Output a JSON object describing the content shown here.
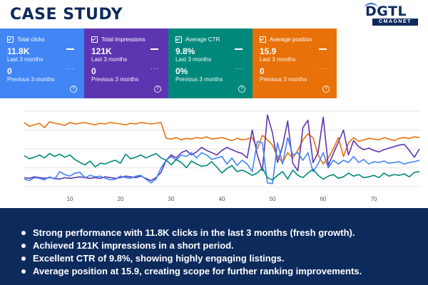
{
  "page": {
    "title": "CASE STUDY"
  },
  "logo": {
    "main": "DGTL",
    "sub": "CMAGNET"
  },
  "cards": [
    {
      "label": "Total clicks",
      "value": "11.8K",
      "period": "Last 3 months",
      "prev_value": "0",
      "prev_period": "Previous 3 months",
      "color": "#4285f4"
    },
    {
      "label": "Total impressions",
      "value": "121K",
      "period": "Last 3 months",
      "prev_value": "0",
      "prev_period": "Previous 3 months",
      "color": "#5e35b1"
    },
    {
      "label": "Average CTR",
      "value": "9.8%",
      "period": "Last 3 months",
      "prev_value": "0%",
      "prev_period": "Previous 3 months",
      "color": "#00897b"
    },
    {
      "label": "Average position",
      "value": "15.9",
      "period": "Last 3 months",
      "prev_value": "0",
      "prev_period": "Previous 3 months",
      "color": "#e8710a"
    }
  ],
  "card_icons": {
    "help": "?"
  },
  "chart_data": {
    "type": "line",
    "xlim": [
      1,
      79
    ],
    "ylim": [
      0,
      10
    ],
    "grid": true,
    "x_ticks": [
      "10",
      "20",
      "30",
      "40",
      "50",
      "60",
      "70"
    ],
    "series": [
      {
        "name": "Average position",
        "color": "#e8710a",
        "values": [
          8.5,
          8,
          8.2,
          8.4,
          7.8,
          8.6,
          8.4,
          8.3,
          8.1,
          8.5,
          8.3,
          8.4,
          8.5,
          8.3,
          8.2,
          8.4,
          8.3,
          8.5,
          8.4,
          8.3,
          8.2,
          8.4,
          8.3,
          8.5,
          8.4,
          8.3,
          8.4,
          8.5,
          6.4,
          6.3,
          6.5,
          6.2,
          6.4,
          6.3,
          6.5,
          6.4,
          6.6,
          6.3,
          6.4,
          6.5,
          6.3,
          6.1,
          6.4,
          6.2,
          6.3,
          6.5,
          5,
          6.8,
          6.2,
          5.5,
          4,
          3.2,
          4.5,
          3.8,
          4.8,
          6.2,
          7,
          6.5,
          4.2,
          3,
          3.8,
          5,
          6.5,
          4,
          5.8,
          6.5,
          6,
          6.2,
          6.4,
          6.3,
          6.2,
          6.5,
          6.3,
          6.1,
          6.4,
          6.5,
          6.4,
          6.6,
          6.5
        ]
      },
      {
        "name": "Total impressions",
        "color": "#5e35b1",
        "values": [
          1.2,
          1.1,
          1.3,
          1.2,
          1.1,
          1.2,
          1.1,
          1.0,
          1.2,
          1.1,
          1.2,
          1.3,
          1.2,
          1.1,
          1.2,
          1.1,
          1.3,
          1.2,
          1.1,
          1.2,
          1.4,
          1.3,
          1.2,
          1.4,
          1.1,
          0.8,
          1.2,
          1.9,
          3.5,
          4.2,
          3.8,
          4.5,
          4.8,
          4.2,
          4.6,
          5.2,
          4.8,
          4.5,
          4.2,
          4.8,
          5.2,
          4.9,
          4.6,
          4.4,
          3.8,
          7.5,
          4.2,
          2.1,
          9.5,
          7.1,
          3.2,
          5.4,
          8.7,
          3.1,
          2.1,
          7.8,
          8.8,
          3.2,
          4.5,
          9.2,
          2.8,
          4.4,
          5.9,
          7.5,
          4.2,
          6.1,
          5.3,
          4.9,
          5.1,
          4.8,
          4.6,
          4.9,
          5.1,
          5.3,
          5.5,
          5.6,
          4.8,
          3.9,
          5.0
        ]
      },
      {
        "name": "Total clicks",
        "color": "#4285f4",
        "values": [
          1.0,
          0.8,
          1.2,
          1.1,
          0.9,
          1.3,
          1.0,
          2.0,
          1.6,
          1.4,
          1.8,
          1.9,
          1.2,
          1.5,
          1.3,
          1.4,
          1.1,
          0.9,
          1.0,
          1.4,
          1.2,
          1.1,
          1.4,
          1.5,
          1.0,
          0.5,
          1.0,
          2.5,
          3.5,
          4.0,
          3.5,
          4.2,
          4.0,
          4.5,
          3.8,
          4.5,
          4.2,
          3.6,
          3.8,
          4.0,
          3.0,
          3.8,
          2.8,
          3.5,
          3.0,
          2.0,
          6.0,
          5.8,
          0.5,
          0.4,
          5.8,
          3.0,
          6.5,
          4.2,
          4.5,
          3.5,
          4.5,
          2.0,
          3.0,
          4.5,
          2.5,
          3.5,
          3.0,
          3.5,
          3.2,
          4.0,
          3.2,
          3.6,
          3.0,
          3.3,
          3.2,
          3.4,
          3.1,
          3.2,
          3.3,
          3.0,
          3.2,
          3.3,
          3.5
        ]
      },
      {
        "name": "Average CTR",
        "color": "#00897b",
        "values": [
          4.1,
          3.7,
          3.9,
          4.2,
          3.8,
          4.4,
          4.0,
          4.3,
          3.9,
          4.2,
          3.6,
          3.2,
          2.9,
          3.4,
          2.6,
          3.1,
          3.0,
          3.3,
          3.5,
          3.1,
          4.3,
          3.7,
          3.9,
          4.2,
          3.8,
          4.1,
          4.4,
          3.8,
          3.5,
          2.9,
          3.6,
          3.2,
          2.5,
          3.4,
          3.0,
          2.7,
          2.8,
          3.3,
          2.6,
          1.8,
          2.4,
          2.8,
          2.0,
          2.2,
          1.9,
          1.5,
          1.8,
          2.5,
          1.2,
          0.9,
          1.5,
          2.0,
          1.0,
          2.2,
          1.5,
          1.2,
          1.8,
          2.3,
          1.5,
          1.0,
          1.4,
          1.6,
          1.1,
          1.3,
          1.8,
          1.4,
          1.6,
          1.2,
          1.3,
          1.5,
          1.2,
          1.8,
          1.4,
          1.6,
          1.5,
          1.7,
          1.3,
          1.9,
          2.0
        ]
      }
    ]
  },
  "highlights": [
    "Strong performance with 11.8K clicks in the last 3 months (fresh growth).",
    "Achieved 121K impressions in a short period.",
    "Excellent CTR of 9.8%, showing highly engaging listings.",
    "Average position at 15.9, creating scope for further ranking improvements."
  ],
  "colors": {
    "navy": "#0d2a5c",
    "grid": "#e3e3e3"
  }
}
